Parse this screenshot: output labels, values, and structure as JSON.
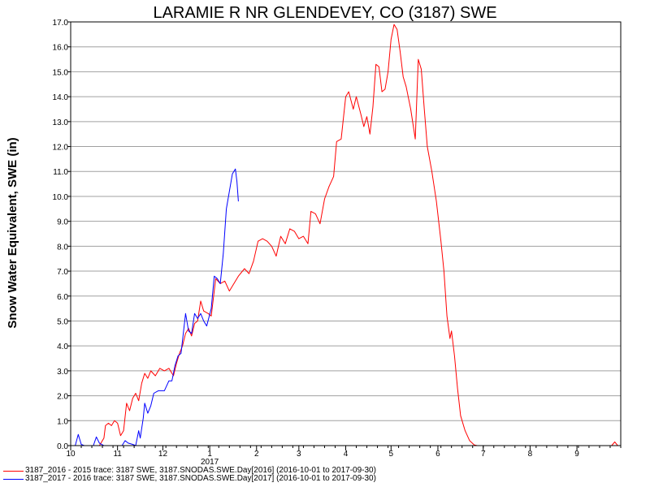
{
  "chart_data": {
    "type": "line",
    "title": "LARAMIE R NR GLENDEVEY, CO (3187) SWE",
    "ylabel": "Snow Water Equivalent, SWE (in)",
    "xlabel": "",
    "ylim": [
      0,
      17
    ],
    "y_ticks": [
      "0.0",
      "1.0",
      "2.0",
      "3.0",
      "4.0",
      "5.0",
      "6.0",
      "7.0",
      "8.0",
      "9.0",
      "10.0",
      "11.0",
      "12.0",
      "13.0",
      "14.0",
      "15.0",
      "16.0",
      "17.0"
    ],
    "xlim": [
      "2016-10-01",
      "2017-09-30"
    ],
    "x_ticks": [
      {
        "date": "2016-10-01",
        "label": "10"
      },
      {
        "date": "2016-11-01",
        "label": "11"
      },
      {
        "date": "2016-12-01",
        "label": "12"
      },
      {
        "date": "2017-01-01",
        "label": "1"
      },
      {
        "date": "2017-02-01",
        "label": "2"
      },
      {
        "date": "2017-03-01",
        "label": "3"
      },
      {
        "date": "2017-04-01",
        "label": "4"
      },
      {
        "date": "2017-05-01",
        "label": "5"
      },
      {
        "date": "2017-06-01",
        "label": "6"
      },
      {
        "date": "2017-07-01",
        "label": "7"
      },
      {
        "date": "2017-08-01",
        "label": "8"
      },
      {
        "date": "2017-09-01",
        "label": "9"
      }
    ],
    "year_label": "2017",
    "grid": "horizontal",
    "series": [
      {
        "name": "3187_2016 - 2015 trace: 3187 SWE, 3187.SNODAS.SWE.Day[2016] (2016-10-01 to 2017-09-30)",
        "color": "#ff0000",
        "points": [
          [
            "2016-10-01",
            0
          ],
          [
            "2016-10-20",
            0
          ],
          [
            "2016-10-23",
            0.3
          ],
          [
            "2016-10-24",
            0.8
          ],
          [
            "2016-10-26",
            0.9
          ],
          [
            "2016-10-28",
            0.8
          ],
          [
            "2016-10-30",
            1.0
          ],
          [
            "2016-11-01",
            0.9
          ],
          [
            "2016-11-03",
            0.4
          ],
          [
            "2016-11-05",
            0.6
          ],
          [
            "2016-11-07",
            1.7
          ],
          [
            "2016-11-09",
            1.4
          ],
          [
            "2016-11-11",
            1.9
          ],
          [
            "2016-11-13",
            2.1
          ],
          [
            "2016-11-15",
            1.8
          ],
          [
            "2016-11-17",
            2.5
          ],
          [
            "2016-11-19",
            2.9
          ],
          [
            "2016-11-21",
            2.7
          ],
          [
            "2016-11-23",
            3.0
          ],
          [
            "2016-11-26",
            2.8
          ],
          [
            "2016-11-29",
            3.1
          ],
          [
            "2016-12-02",
            3.0
          ],
          [
            "2016-12-05",
            3.1
          ],
          [
            "2016-12-08",
            2.8
          ],
          [
            "2016-12-10",
            3.3
          ],
          [
            "2016-12-12",
            3.7
          ],
          [
            "2016-12-14",
            4.0
          ],
          [
            "2016-12-16",
            4.5
          ],
          [
            "2016-12-18",
            4.7
          ],
          [
            "2016-12-20",
            4.4
          ],
          [
            "2016-12-22",
            4.9
          ],
          [
            "2016-12-24",
            5.0
          ],
          [
            "2016-12-26",
            5.8
          ],
          [
            "2016-12-28",
            5.4
          ],
          [
            "2016-12-31",
            5.3
          ],
          [
            "2017-01-02",
            5.2
          ],
          [
            "2017-01-05",
            6.7
          ],
          [
            "2017-01-08",
            6.5
          ],
          [
            "2017-01-11",
            6.6
          ],
          [
            "2017-01-14",
            6.2
          ],
          [
            "2017-01-17",
            6.5
          ],
          [
            "2017-01-20",
            6.8
          ],
          [
            "2017-01-24",
            7.1
          ],
          [
            "2017-01-27",
            6.9
          ],
          [
            "2017-01-30",
            7.4
          ],
          [
            "2017-02-02",
            8.2
          ],
          [
            "2017-02-05",
            8.3
          ],
          [
            "2017-02-08",
            8.2
          ],
          [
            "2017-02-11",
            8.0
          ],
          [
            "2017-02-14",
            7.6
          ],
          [
            "2017-02-17",
            8.4
          ],
          [
            "2017-02-20",
            8.1
          ],
          [
            "2017-02-23",
            8.7
          ],
          [
            "2017-02-26",
            8.6
          ],
          [
            "2017-03-01",
            8.3
          ],
          [
            "2017-03-04",
            8.4
          ],
          [
            "2017-03-07",
            8.1
          ],
          [
            "2017-03-09",
            9.4
          ],
          [
            "2017-03-12",
            9.3
          ],
          [
            "2017-03-15",
            8.9
          ],
          [
            "2017-03-18",
            9.9
          ],
          [
            "2017-03-21",
            10.4
          ],
          [
            "2017-03-24",
            10.8
          ],
          [
            "2017-03-26",
            12.2
          ],
          [
            "2017-03-29",
            12.3
          ],
          [
            "2017-04-01",
            14.0
          ],
          [
            "2017-04-03",
            14.2
          ],
          [
            "2017-04-06",
            13.5
          ],
          [
            "2017-04-08",
            14.0
          ],
          [
            "2017-04-11",
            13.3
          ],
          [
            "2017-04-13",
            12.8
          ],
          [
            "2017-04-15",
            13.2
          ],
          [
            "2017-04-17",
            12.5
          ],
          [
            "2017-04-19",
            13.6
          ],
          [
            "2017-04-21",
            15.3
          ],
          [
            "2017-04-23",
            15.2
          ],
          [
            "2017-04-25",
            14.2
          ],
          [
            "2017-04-27",
            14.3
          ],
          [
            "2017-04-29",
            15.0
          ],
          [
            "2017-05-01",
            16.3
          ],
          [
            "2017-05-03",
            16.9
          ],
          [
            "2017-05-05",
            16.7
          ],
          [
            "2017-05-07",
            15.8
          ],
          [
            "2017-05-09",
            14.8
          ],
          [
            "2017-05-11",
            14.4
          ],
          [
            "2017-05-14",
            13.5
          ],
          [
            "2017-05-17",
            12.3
          ],
          [
            "2017-05-19",
            15.5
          ],
          [
            "2017-05-21",
            15.1
          ],
          [
            "2017-05-23",
            13.5
          ],
          [
            "2017-05-25",
            12.0
          ],
          [
            "2017-05-28",
            11.0
          ],
          [
            "2017-05-31",
            9.8
          ],
          [
            "2017-06-03",
            8.2
          ],
          [
            "2017-06-05",
            7.0
          ],
          [
            "2017-06-07",
            5.2
          ],
          [
            "2017-06-09",
            4.3
          ],
          [
            "2017-06-10",
            4.6
          ],
          [
            "2017-06-12",
            3.6
          ],
          [
            "2017-06-14",
            2.3
          ],
          [
            "2017-06-16",
            1.2
          ],
          [
            "2017-06-19",
            0.6
          ],
          [
            "2017-06-22",
            0.2
          ],
          [
            "2017-06-25",
            0.03
          ],
          [
            "2017-06-27",
            0
          ],
          [
            "2017-09-24",
            0
          ],
          [
            "2017-09-26",
            0.15
          ],
          [
            "2017-09-28",
            0
          ]
        ]
      },
      {
        "name": "3187_2017 - 2016 trace: 3187 SWE, 3187.SNODAS.SWE.Day[2017] (2016-10-01 to 2017-09-30)",
        "color": "#0000ff",
        "points": [
          [
            "2016-10-01",
            0
          ],
          [
            "2016-10-04",
            0
          ],
          [
            "2016-10-06",
            0.45
          ],
          [
            "2016-10-08",
            0.05
          ],
          [
            "2016-10-10",
            0
          ],
          [
            "2016-10-16",
            0
          ],
          [
            "2016-10-18",
            0.35
          ],
          [
            "2016-10-20",
            0.1
          ],
          [
            "2016-10-23",
            0
          ],
          [
            "2016-11-01",
            0
          ],
          [
            "2016-11-04",
            0
          ],
          [
            "2016-11-06",
            0.2
          ],
          [
            "2016-11-08",
            0.1
          ],
          [
            "2016-11-11",
            0.05
          ],
          [
            "2016-11-13",
            0
          ],
          [
            "2016-11-15",
            0.6
          ],
          [
            "2016-11-16",
            0.3
          ],
          [
            "2016-11-18",
            1.1
          ],
          [
            "2016-11-19",
            1.7
          ],
          [
            "2016-11-21",
            1.3
          ],
          [
            "2016-11-23",
            1.6
          ],
          [
            "2016-11-25",
            2.1
          ],
          [
            "2016-11-28",
            2.2
          ],
          [
            "2016-12-02",
            2.2
          ],
          [
            "2016-12-05",
            2.6
          ],
          [
            "2016-12-07",
            2.6
          ],
          [
            "2016-12-09",
            3.2
          ],
          [
            "2016-12-11",
            3.6
          ],
          [
            "2016-12-13",
            3.7
          ],
          [
            "2016-12-16",
            5.3
          ],
          [
            "2016-12-18",
            4.6
          ],
          [
            "2016-12-20",
            4.5
          ],
          [
            "2016-12-22",
            5.3
          ],
          [
            "2016-12-24",
            5.1
          ],
          [
            "2016-12-26",
            5.3
          ],
          [
            "2016-12-28",
            5.0
          ],
          [
            "2016-12-30",
            4.8
          ],
          [
            "2017-01-02",
            5.5
          ],
          [
            "2017-01-04",
            6.8
          ],
          [
            "2017-01-06",
            6.7
          ],
          [
            "2017-01-08",
            6.5
          ],
          [
            "2017-01-10",
            7.7
          ],
          [
            "2017-01-12",
            9.5
          ],
          [
            "2017-01-14",
            10.2
          ],
          [
            "2017-01-16",
            10.9
          ],
          [
            "2017-01-18",
            11.1
          ],
          [
            "2017-01-19",
            10.6
          ],
          [
            "2017-01-20",
            9.8
          ]
        ]
      }
    ]
  }
}
